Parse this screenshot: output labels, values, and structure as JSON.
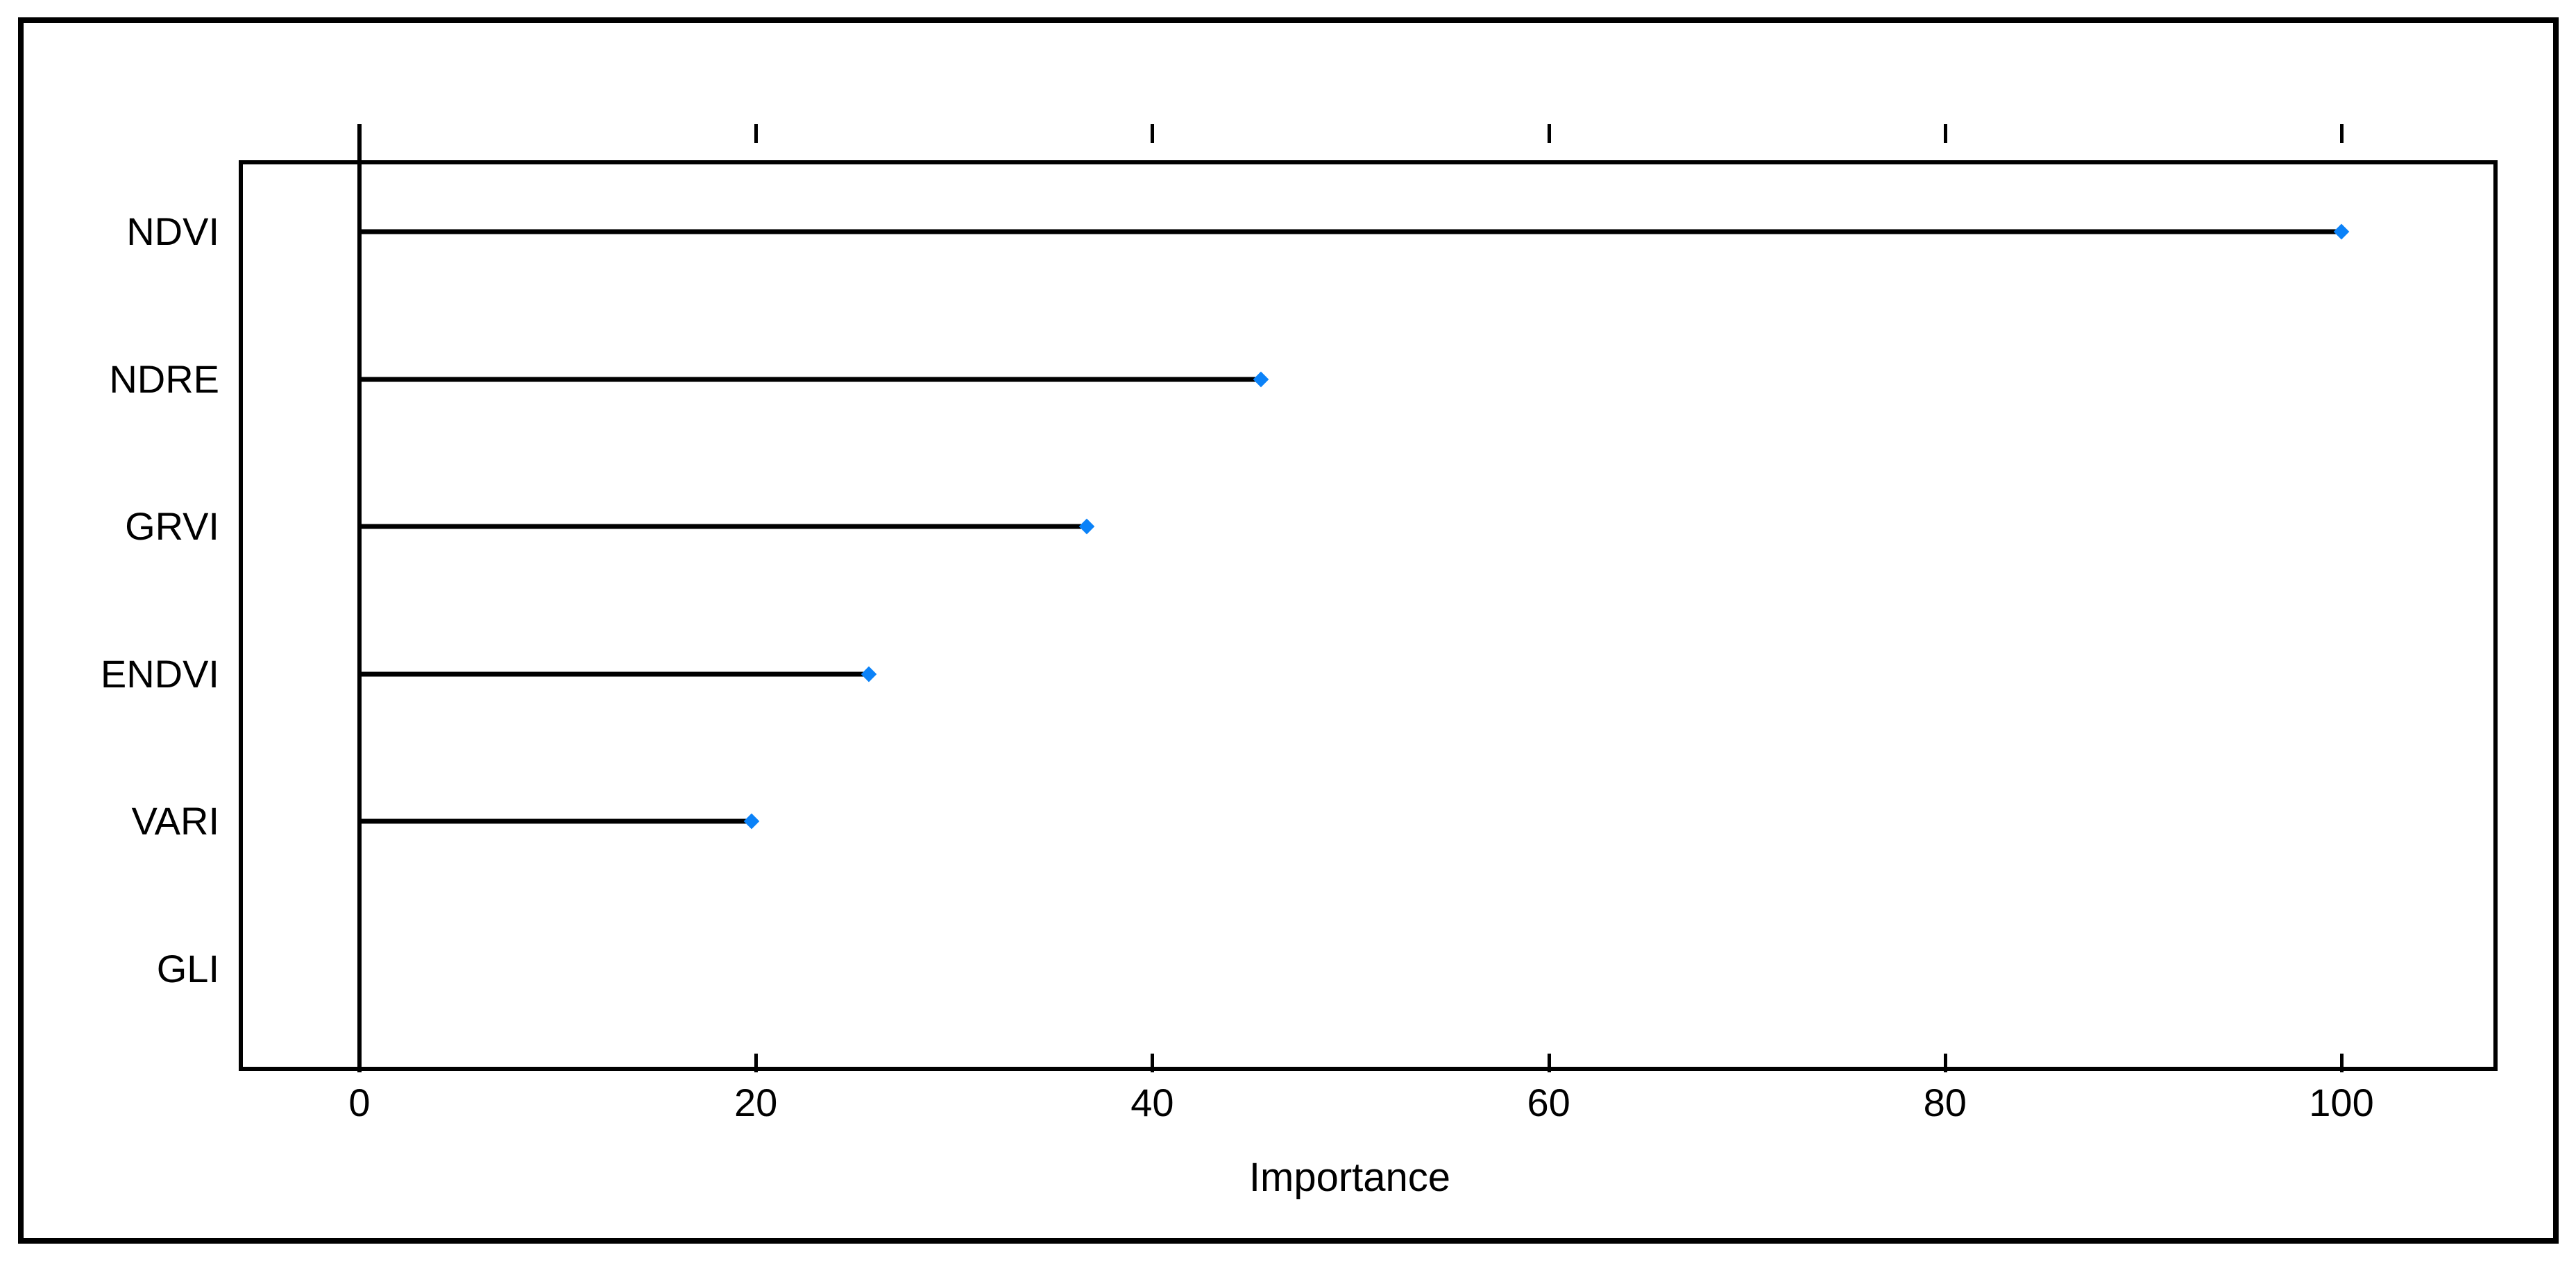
{
  "chart_data": {
    "type": "scatter",
    "variant": "horizontal lollipop / dot chart (variable importance plot)",
    "title": "",
    "xlabel": "Importance",
    "ylabel": "",
    "categories": [
      "NDVI",
      "NDRE",
      "GRVI",
      "ENDVI",
      "VARI",
      "GLI"
    ],
    "values": [
      100.0,
      45.5,
      36.7,
      25.7,
      19.8,
      0.0
    ],
    "x_ticks": [
      0,
      20,
      40,
      60,
      80,
      100
    ],
    "xlim": [
      -7,
      107
    ],
    "grid": "off",
    "legend": "none",
    "frame": "full box with outward ticks on top and bottom edges, vertical reference line at x=0",
    "point_shape": "filled diamond",
    "point_color": "#0b82f8",
    "stem_color": "#000000",
    "axis_color": "#000000",
    "notes": "GLI has importance 0 and shows no stem or marker"
  }
}
